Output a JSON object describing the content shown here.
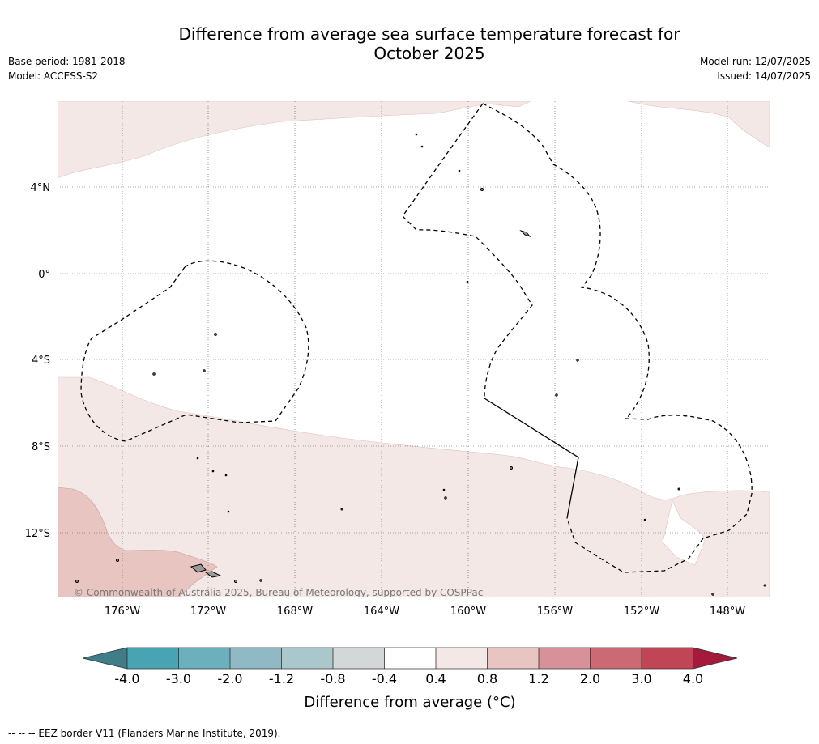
{
  "title_line1": "Difference from average sea surface temperature forecast for",
  "title_line2": "October 2025",
  "base_period": "Base period: 1981-2018",
  "model": "Model: ACCESS-S2",
  "model_run": "Model run: 12/07/2025",
  "issued": "Issued: 14/07/2025",
  "copyright": "© Commonwealth of Australia 2025, Bureau of Meteorology, supported by COSPPac",
  "footer": "--  --  -- EEZ border V11 (Flanders Marine Institute, 2019).",
  "colorbar_label": "Difference from average (°C)",
  "map": {
    "lon_range": [
      -179,
      -146.2
    ],
    "lat_range": [
      -15,
      8
    ],
    "lon_ticks": [
      -176,
      -172,
      -168,
      -164,
      -160,
      -156,
      -152,
      -148
    ],
    "lon_tick_labels": [
      "176°W",
      "172°W",
      "168°W",
      "164°W",
      "160°W",
      "156°W",
      "152°W",
      "148°W"
    ],
    "lat_ticks": [
      4,
      0,
      -4,
      -8,
      -12
    ],
    "lat_tick_labels": [
      "4°N",
      "0°",
      "4°S",
      "8°S",
      "12°S"
    ],
    "gridlines": true,
    "ocean_color": "#ffffff",
    "land_color": "#999999"
  },
  "colorbar": {
    "bounds": [
      "-4.0",
      "-3.0",
      "-2.0",
      "-1.2",
      "-0.8",
      "-0.4",
      "0.4",
      "0.8",
      "1.2",
      "2.0",
      "3.0",
      "4.0"
    ],
    "colors": [
      "#48a3b3",
      "#6cafbd",
      "#8fbac5",
      "#aac7cc",
      "#d3d7d8",
      "#ffffff",
      "#f4e8e6",
      "#e8c5c0",
      "#d6919a",
      "#cb6a74",
      "#c04656"
    ],
    "under_color": "#3f7e88",
    "over_color": "#a5193a"
  },
  "regions": [
    {
      "name": "warm-anomaly-0.4-0.8",
      "color": "#f4e8e6"
    },
    {
      "name": "warm-anomaly-0.8-1.2",
      "color": "#e8c5c0"
    }
  ]
}
